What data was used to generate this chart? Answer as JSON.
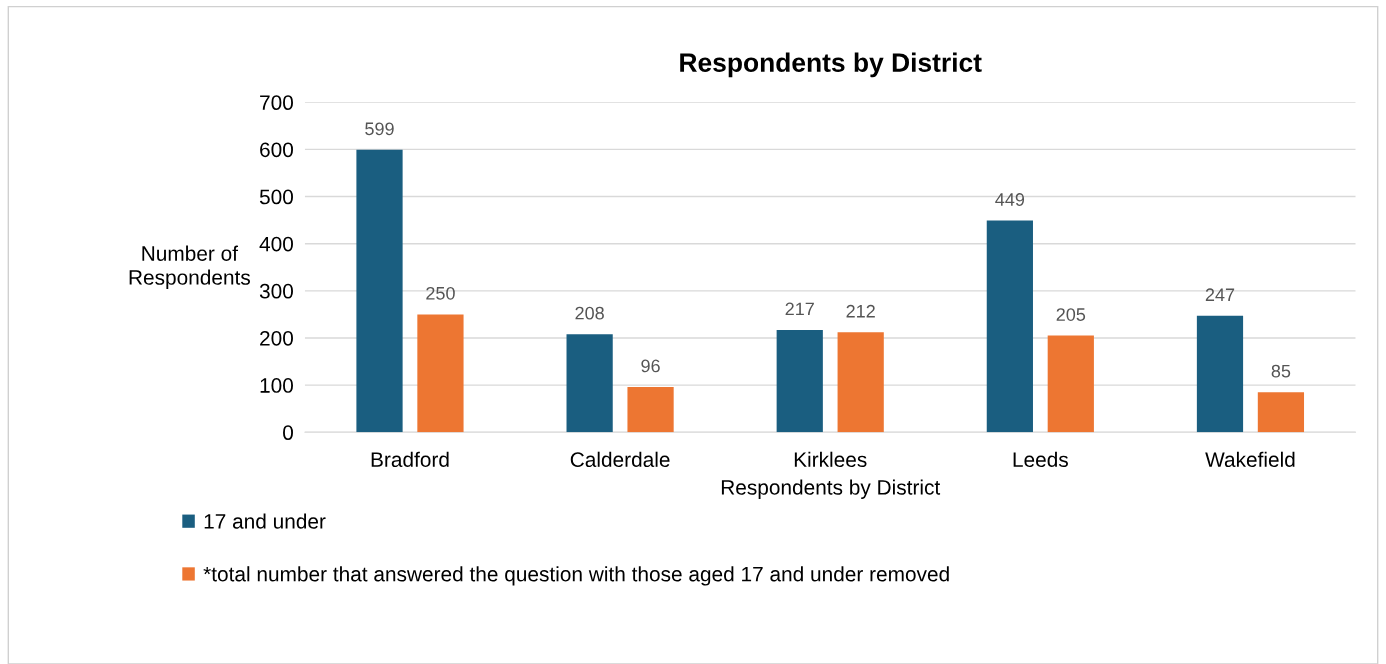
{
  "chart_data": {
    "type": "bar",
    "title": "Respondents by District",
    "xlabel": "Respondents by District",
    "ylabel": "Number of\nRespondents",
    "categories": [
      "Bradford",
      "Calderdale",
      "Kirklees",
      "Leeds",
      "Wakefield"
    ],
    "series": [
      {
        "name": "17 and under",
        "color": "#1a5e80",
        "values": [
          599,
          208,
          217,
          449,
          247
        ]
      },
      {
        "name": "*total number that answered the question with those aged 17 and under removed",
        "color": "#ed7632",
        "values": [
          250,
          96,
          212,
          205,
          85
        ]
      }
    ],
    "ylim": [
      0,
      700
    ],
    "yticks": [
      0,
      100,
      200,
      300,
      400,
      500,
      600,
      700
    ],
    "grid": "y",
    "legend": "bottom left",
    "data_labels": true
  }
}
